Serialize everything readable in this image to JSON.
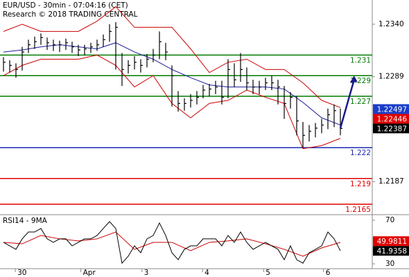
{
  "chart_data": [
    {
      "type": "price",
      "title": "EUR/USD - 30min - 07:04:16 (CET)",
      "subtitle": "Research © 2018 TRADING CENTRAL",
      "bars": {
        "color": "#000000",
        "high": [
          1.2308,
          1.2305,
          1.2302,
          1.2318,
          1.2325,
          1.2328,
          1.2331,
          1.2327,
          1.2325,
          1.2324,
          1.2326,
          1.2323,
          1.232,
          1.232,
          1.2322,
          1.2325,
          1.233,
          1.234,
          1.2342,
          1.2312,
          1.2305,
          1.2309,
          1.2306,
          1.2311,
          1.2316,
          1.2333,
          1.2322,
          1.23,
          1.2275,
          1.2268,
          1.2272,
          1.2275,
          1.2281,
          1.2282,
          1.2285,
          1.2285,
          1.2306,
          1.2302,
          1.2312,
          1.2298,
          1.2286,
          1.2285,
          1.2288,
          1.229,
          1.2286,
          1.228,
          1.2274,
          1.227,
          1.2245,
          1.2242,
          1.2244,
          1.2248,
          1.2258,
          1.2262,
          1.2258
        ],
        "low": [
          1.2294,
          1.2293,
          1.2288,
          1.2295,
          1.2312,
          1.2316,
          1.232,
          1.2315,
          1.2314,
          1.2313,
          1.2315,
          1.2312,
          1.2309,
          1.231,
          1.2312,
          1.2314,
          1.2318,
          1.2323,
          1.2296,
          1.228,
          1.2292,
          1.2296,
          1.2293,
          1.2298,
          1.2303,
          1.2306,
          1.2305,
          1.226,
          1.2255,
          1.2256,
          1.2259,
          1.2262,
          1.2268,
          1.227,
          1.2272,
          1.2262,
          1.2268,
          1.2279,
          1.2284,
          1.2276,
          1.2272,
          1.2272,
          1.2276,
          1.2276,
          1.2262,
          1.2248,
          1.2258,
          1.2232,
          1.222,
          1.2226,
          1.223,
          1.2234,
          1.2238,
          1.224,
          1.2232
        ],
        "close": [
          1.2303,
          1.23,
          1.2296,
          1.2313,
          1.232,
          1.2323,
          1.2327,
          1.2322,
          1.232,
          1.232,
          1.2322,
          1.2318,
          1.2315,
          1.2316,
          1.2318,
          1.232,
          1.2325,
          1.2333,
          1.2337,
          1.2296,
          1.23,
          1.2303,
          1.23,
          1.2306,
          1.231,
          1.2323,
          1.2313,
          1.229,
          1.2263,
          1.2263,
          1.2266,
          1.2269,
          1.2276,
          1.2277,
          1.2279,
          1.2269,
          1.2296,
          1.2286,
          1.2296,
          1.2283,
          1.2279,
          1.2279,
          1.2283,
          1.2283,
          1.2279,
          1.2263,
          1.2269,
          1.2246,
          1.2232,
          1.2236,
          1.2239,
          1.2242,
          1.2252,
          1.2256,
          1.22387
        ]
      },
      "bands": {
        "band_color": "#cc0000",
        "middle_color": "#1a1a9a",
        "x": [
          0,
          3,
          6,
          9,
          12,
          15,
          18,
          21,
          24,
          27,
          30,
          33,
          36,
          39,
          42,
          45,
          48,
          51,
          54
        ],
        "upper": [
          1.2333,
          1.234,
          1.2333,
          1.2333,
          1.2333,
          1.2343,
          1.2357,
          1.2337,
          1.2337,
          1.2337,
          1.2316,
          1.2293,
          1.2303,
          1.2306,
          1.2296,
          1.2296,
          1.2283,
          1.2266,
          1.2259
        ],
        "middle": [
          1.2313,
          1.2315,
          1.2318,
          1.232,
          1.2318,
          1.2316,
          1.2322,
          1.2313,
          1.2306,
          1.2296,
          1.2288,
          1.2281,
          1.2279,
          1.2279,
          1.2279,
          1.2277,
          1.2264,
          1.2249,
          1.2242
        ],
        "lower": [
          1.229,
          1.23,
          1.2306,
          1.2306,
          1.2306,
          1.231,
          1.23,
          1.2279,
          1.229,
          1.2263,
          1.2249,
          1.2263,
          1.2266,
          1.2276,
          1.2269,
          1.2263,
          1.2219,
          1.2222,
          1.2229
        ]
      },
      "levels": [
        {
          "value": 1.231,
          "color": "#007a00"
        },
        {
          "value": 1.229,
          "color": "#007a00"
        },
        {
          "value": 1.227,
          "color": "#007a00"
        },
        {
          "value": 1.222,
          "color": "#1a2bb0"
        },
        {
          "value": 1.219,
          "color": "#dd0000"
        },
        {
          "value": 1.2165,
          "color": "#dd0000"
        }
      ],
      "price_tags": [
        {
          "value": 1.22497,
          "color": "#1a3ec8"
        },
        {
          "value": 1.22446,
          "color": "#e00000"
        },
        {
          "value": 1.22387,
          "color": "#000000"
        }
      ],
      "arrow": {
        "x": [
          54,
          56.2
        ],
        "values": [
          1.2239,
          1.229
        ],
        "color": "#1a1a8c"
      },
      "xlim": [
        -0.556,
        59.111
      ],
      "xticks": [
        {
          "value": 1.9,
          "label": "30"
        },
        {
          "value": 12.4,
          "label": "Apr"
        },
        {
          "value": 22.2,
          "label": "3"
        },
        {
          "value": 31.9,
          "label": "4"
        },
        {
          "value": 41.7,
          "label": "5"
        },
        {
          "value": 51.3,
          "label": "6"
        }
      ],
      "ylim": [
        1.21562,
        1.23622
      ],
      "yticks": [
        {
          "value": 1.234,
          "label": "1.2340"
        },
        1.2289,
        1.2187
      ]
    },
    {
      "type": "rsi",
      "title": "RSI14 - 9MA",
      "color": "#000000",
      "values": [
        49.7,
        46.5,
        43.3,
        52.9,
        59.2,
        59.2,
        62.4,
        52.9,
        49.7,
        52.9,
        52.9,
        46.5,
        49.7,
        52.9,
        52.9,
        56.0,
        62.4,
        68.7,
        62.4,
        30.6,
        37.0,
        46.5,
        40.2,
        52.9,
        56.0,
        67.5,
        56.0,
        40.2,
        33.8,
        43.3,
        46.5,
        46.5,
        52.9,
        52.9,
        52.9,
        46.5,
        56.0,
        49.7,
        59.2,
        49.7,
        43.3,
        46.5,
        49.7,
        46.5,
        43.3,
        33.8,
        46.5,
        33.8,
        30.6,
        40.2,
        43.3,
        46.5,
        59.2,
        52.9,
        41.9358
      ],
      "ma": {
        "color": "#cc0000",
        "x": [
          0,
          3,
          6,
          9,
          12,
          15,
          18,
          21,
          24,
          27,
          30,
          33,
          36,
          39,
          42,
          45,
          48,
          51,
          54
        ],
        "values": [
          49.7,
          48.4,
          56.0,
          52.9,
          51.0,
          52.9,
          59.2,
          43.3,
          49.7,
          49.7,
          42.1,
          49.7,
          51.0,
          52.9,
          48.4,
          43.3,
          37.0,
          44.6,
          49.7
        ]
      },
      "tags": [
        {
          "value": 49.9811,
          "color": "#e00000"
        },
        {
          "value": 41.9358,
          "color": "#000000"
        }
      ],
      "ylim": [
        26.83,
        73.81
      ],
      "yticks": [
        70,
        30
      ]
    }
  ]
}
